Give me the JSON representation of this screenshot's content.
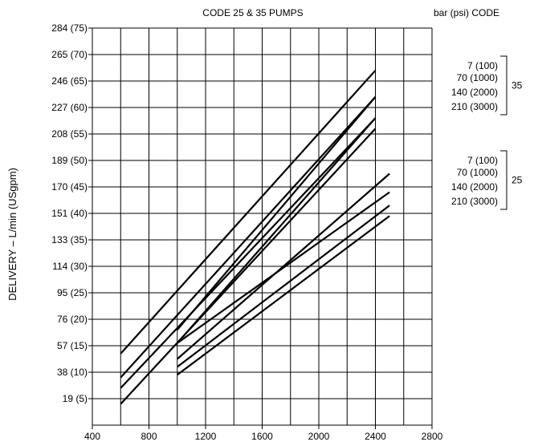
{
  "chart_data": {
    "type": "line",
    "title": "CODE 25 & 35 PUMPS",
    "xlabel": "",
    "ylabel": "DELIVERY – L/min (USgpm)",
    "xlim": [
      400,
      2800
    ],
    "ylim": [
      0,
      15
    ],
    "x_ticks": [
      "400",
      "800",
      "1200",
      "1600",
      "2000",
      "2400",
      "2800"
    ],
    "y_ticks": [
      "19 (5)",
      "38 (10)",
      "57 (15)",
      "76 (20)",
      "95 (25)",
      "114 (30)",
      "133 (35)",
      "151 (40)",
      "170 (45)",
      "189 (50)",
      "208 (55)",
      "227 (60)",
      "246 (65)",
      "265 (70)",
      "284 (75)"
    ],
    "grid": true,
    "legend": {
      "header": "bar (psi)  CODE",
      "groups": [
        {
          "code": "35",
          "entries": [
            "7 (100)",
            "70 (1000)",
            "140 (2000)",
            "210 (3000)"
          ]
        },
        {
          "code": "25",
          "entries": [
            "7 (100)",
            "70 (1000)",
            "140 (2000)",
            "210 (3000)"
          ]
        }
      ]
    },
    "series": [
      {
        "name": "Code 35 – 7 (100)",
        "x": [
          600,
          2400
        ],
        "y": [
          2.7,
          13.4
        ]
      },
      {
        "name": "Code 35 – 70 (1000)",
        "x": [
          600,
          2400
        ],
        "y": [
          1.8,
          12.4
        ]
      },
      {
        "name": "Code 35 – 70 (1000)",
        "x": [
          1000,
          2400
        ],
        "y": [
          3.6,
          12.4
        ]
      },
      {
        "name": "Code 35 – 140 (2000)",
        "x": [
          600,
          2400
        ],
        "y": [
          1.4,
          11.6
        ]
      },
      {
        "name": "Code 35 – 140 (2000)",
        "x": [
          1000,
          2400
        ],
        "y": [
          3.1,
          11.6
        ]
      },
      {
        "name": "Code 35 – 210 (3000)",
        "x": [
          600,
          2400
        ],
        "y": [
          0.8,
          11.2
        ]
      },
      {
        "name": "Code 25 – 7 (100)",
        "x": [
          1000,
          2500
        ],
        "y": [
          2.5,
          9.5
        ]
      },
      {
        "name": "Code 25 – 70 (1000)",
        "x": [
          1000,
          2500
        ],
        "y": [
          3.1,
          8.8
        ]
      },
      {
        "name": "Code 25 – 140 (2000)",
        "x": [
          1000,
          2500
        ],
        "y": [
          2.2,
          8.3
        ]
      },
      {
        "name": "Code 25 – 210 (3000)",
        "x": [
          1000,
          2500
        ],
        "y": [
          1.9,
          7.9
        ]
      }
    ]
  }
}
